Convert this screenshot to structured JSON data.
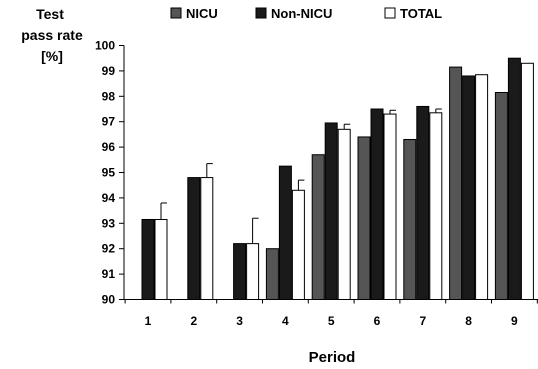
{
  "chart_data": {
    "type": "bar",
    "ylabel": [
      "Test",
      "pass rate",
      "[%]"
    ],
    "xlabel": "Period",
    "ylim": [
      90,
      100
    ],
    "yticks": [
      90,
      91,
      92,
      93,
      94,
      95,
      96,
      97,
      98,
      99,
      100
    ],
    "categories": [
      "1",
      "2",
      "3",
      "4",
      "5",
      "6",
      "7",
      "8",
      "9"
    ],
    "legend_position": "top",
    "series": [
      {
        "name": "NICU",
        "color": "#555555",
        "values": [
          null,
          null,
          null,
          92.0,
          95.7,
          96.4,
          96.3,
          99.15,
          98.15
        ],
        "errors": [
          null,
          null,
          null,
          null,
          null,
          null,
          null,
          null,
          null
        ]
      },
      {
        "name": "Non-NICU",
        "color": "#1a1a1a",
        "values": [
          93.15,
          94.8,
          92.2,
          95.25,
          96.95,
          97.5,
          97.6,
          98.8,
          99.5
        ],
        "errors": [
          null,
          null,
          null,
          null,
          null,
          null,
          null,
          null,
          null
        ]
      },
      {
        "name": "TOTAL",
        "color": "#ffffff",
        "values": [
          93.15,
          94.8,
          92.2,
          94.3,
          96.7,
          97.3,
          97.35,
          98.85,
          99.3
        ],
        "errors": [
          0.65,
          0.55,
          1.0,
          0.4,
          0.2,
          0.15,
          0.15,
          null,
          null
        ]
      }
    ]
  }
}
